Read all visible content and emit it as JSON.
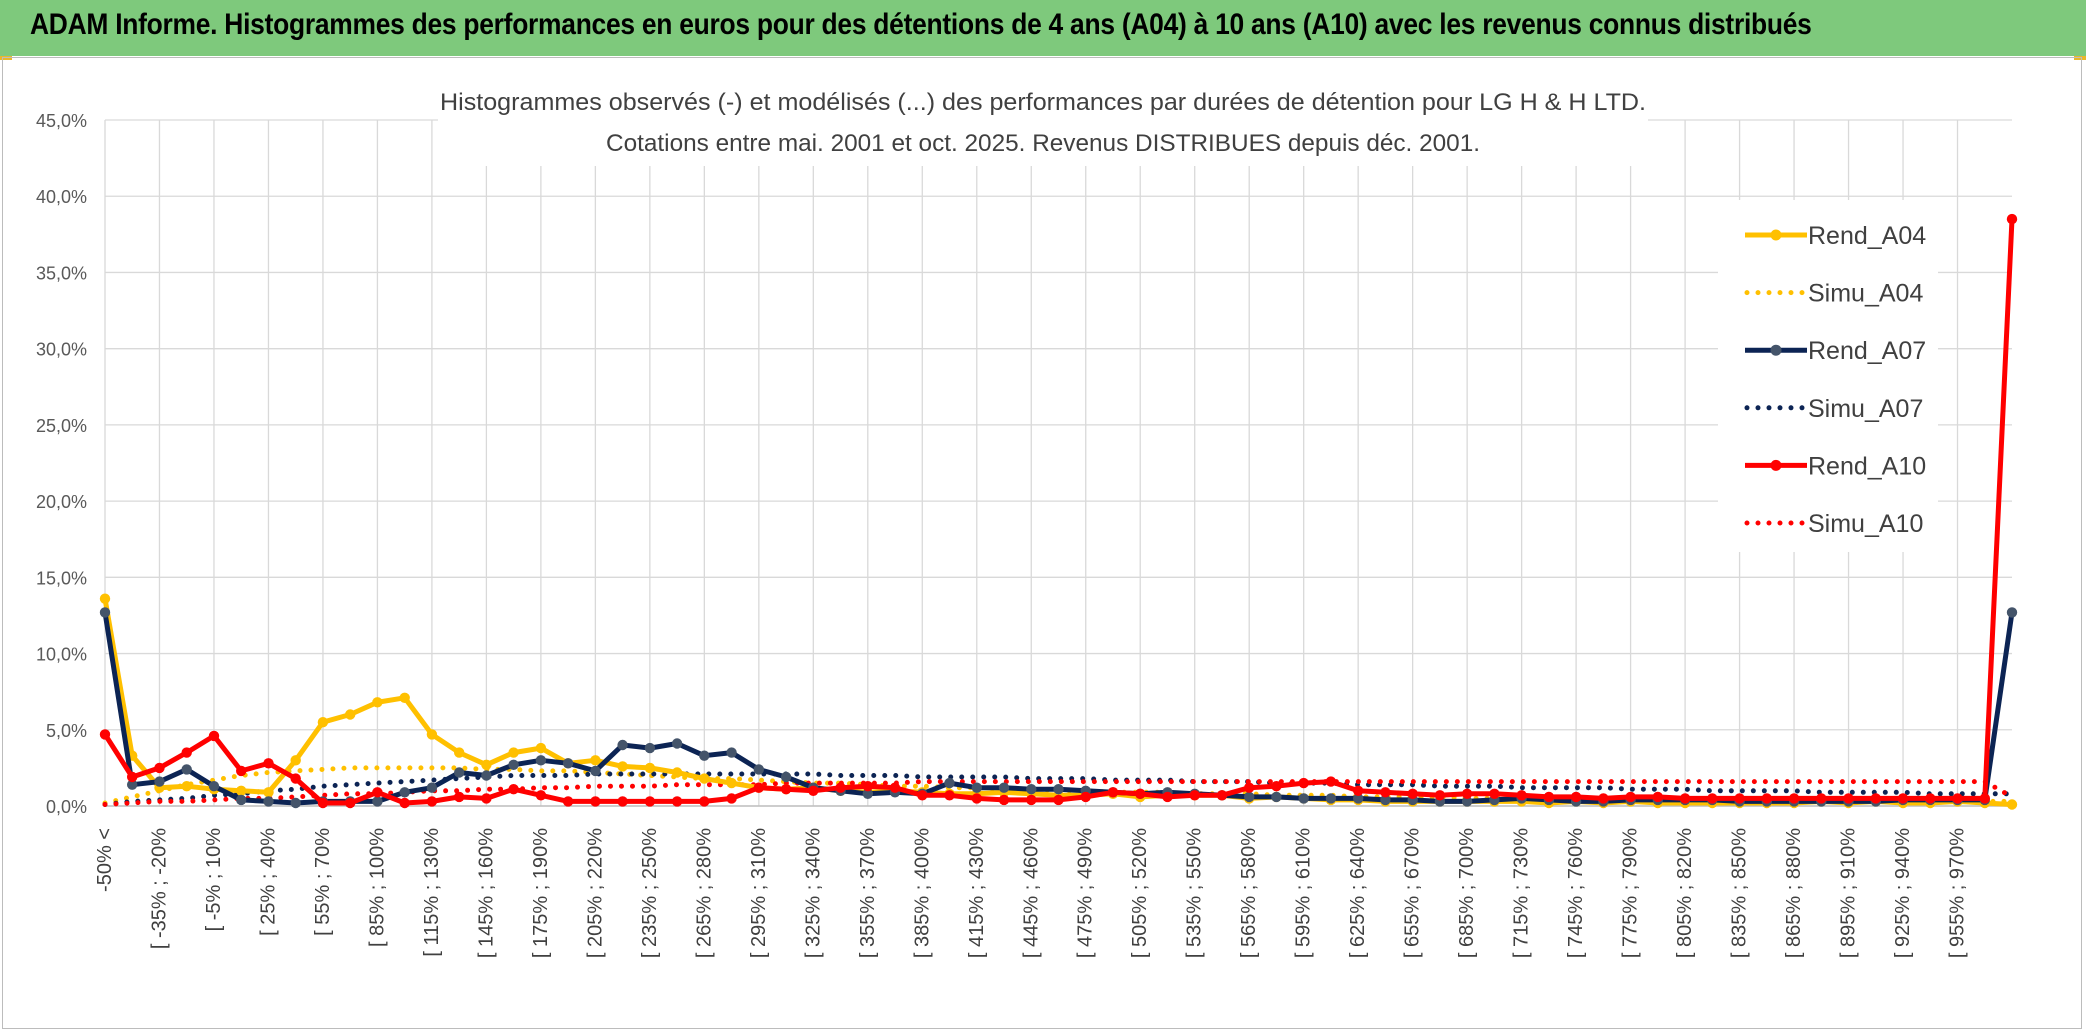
{
  "header": {
    "title": "ADAM Informe. Histogrammes des performances en euros pour des détentions de 4 ans (A04) à 10 ans (A10) avec les revenus connus distribués"
  },
  "chart_data": {
    "type": "line",
    "title": "Histogrammes observés (-) et modélisés (...) des performances par durées de détention pour LG H & H LTD.",
    "subtitle": "Cotations entre mai. 2001 et oct. 2025. Revenus DISTRIBUES depuis déc. 2001.",
    "ylim": [
      0,
      45
    ],
    "yticks": [
      "0,0%",
      "5,0%",
      "10,0%",
      "15,0%",
      "20,0%",
      "25,0%",
      "30,0%",
      "35,0%",
      "40,0%",
      "45,0%"
    ],
    "ytick_values": [
      0,
      5,
      10,
      15,
      20,
      25,
      30,
      35,
      40,
      45
    ],
    "x_tick_labels": [
      "-50% <",
      "[ -35% ; -20%",
      "[ -5% ; 10%",
      "[ 25% ; 40%",
      "[ 55% ; 70%",
      "[ 85% ; 100%",
      "[ 115% ; 130%",
      "[ 145% ; 160%",
      "[ 175% ; 190%",
      "[ 205% ; 220%",
      "[ 235% ; 250%",
      "[ 265% ; 280%",
      "[ 295% ; 310%",
      "[ 325% ; 340%",
      "[ 355% ; 370%",
      "[ 385% ; 400%",
      "[ 415% ; 430%",
      "[ 445% ; 460%",
      "[ 475% ; 490%",
      "[ 505% ; 520%",
      "[ 535% ; 550%",
      "[ 565% ; 580%",
      "[ 595% ; 610%",
      "[ 625% ; 640%",
      "[ 655% ; 670%",
      "[ 685% ; 700%",
      "[ 715% ; 730%",
      "[ 745% ; 760%",
      "[ 775% ; 790%",
      "[ 805% ; 820%",
      "[ 835% ; 850%",
      "[ 865% ; 880%",
      "[ 895% ; 910%",
      "[ 925% ; 940%",
      "[ 955% ; 970%"
    ],
    "grid": true,
    "legend_position": "right",
    "series": [
      {
        "name": "Rend_A04",
        "style": "solid",
        "color": "#ffc000",
        "values": [
          13.6,
          3.3,
          1.2,
          1.3,
          1.1,
          1.0,
          0.9,
          3.0,
          5.5,
          6.0,
          6.8,
          7.1,
          4.7,
          3.5,
          2.7,
          3.5,
          3.8,
          2.8,
          3.0,
          2.6,
          2.5,
          2.2,
          1.8,
          1.5,
          1.2,
          1.1,
          1.2,
          1.0,
          0.9,
          1.0,
          0.9,
          0.8,
          0.8,
          0.9,
          0.8,
          0.7,
          0.7,
          0.8,
          0.6,
          0.7,
          0.7,
          0.7,
          0.5,
          0.6,
          0.5,
          0.4,
          0.4,
          0.3,
          0.3,
          0.3,
          0.3,
          0.3,
          0.3,
          0.2,
          0.3,
          0.2,
          0.3,
          0.2,
          0.2,
          0.2,
          0.2,
          0.2,
          0.2,
          0.3,
          0.2,
          0.3,
          0.2,
          0.2,
          0.3,
          0.2,
          0.1
        ]
      },
      {
        "name": "Simu_A04",
        "style": "dotted",
        "color": "#ffc000",
        "values": [
          0.2,
          0.6,
          1.0,
          1.4,
          1.7,
          2.0,
          2.2,
          2.3,
          2.4,
          2.5,
          2.5,
          2.5,
          2.5,
          2.5,
          2.4,
          2.4,
          2.3,
          2.3,
          2.2,
          2.1,
          2.0,
          1.9,
          1.8,
          1.8,
          1.7,
          1.6,
          1.5,
          1.5,
          1.4,
          1.3,
          1.3,
          1.2,
          1.2,
          1.1,
          1.1,
          1.0,
          1.0,
          0.9,
          0.9,
          0.9,
          0.8,
          0.8,
          0.8,
          0.7,
          0.7,
          0.7,
          0.6,
          0.6,
          0.6,
          0.6,
          0.5,
          0.5,
          0.5,
          0.5,
          0.5,
          0.4,
          0.4,
          0.4,
          0.4,
          0.4,
          0.4,
          0.4,
          0.3,
          0.3,
          0.3,
          0.3,
          0.3,
          0.3,
          0.3,
          0.3,
          0.3
        ]
      },
      {
        "name": "Rend_A07",
        "style": "solid",
        "color": "#0c2454",
        "values": [
          12.7,
          1.4,
          1.6,
          2.4,
          1.3,
          0.4,
          0.3,
          0.2,
          0.3,
          0.3,
          0.3,
          0.9,
          1.2,
          2.2,
          2.0,
          2.7,
          3.0,
          2.8,
          2.3,
          4.0,
          3.8,
          4.1,
          3.3,
          3.5,
          2.4,
          1.9,
          1.2,
          1.0,
          0.8,
          0.9,
          0.8,
          1.5,
          1.2,
          1.2,
          1.1,
          1.1,
          1.0,
          0.9,
          0.8,
          0.9,
          0.8,
          0.7,
          0.6,
          0.6,
          0.5,
          0.5,
          0.5,
          0.4,
          0.4,
          0.3,
          0.3,
          0.4,
          0.5,
          0.4,
          0.3,
          0.3,
          0.4,
          0.4,
          0.4,
          0.4,
          0.3,
          0.3,
          0.3,
          0.3,
          0.3,
          0.3,
          0.4,
          0.4,
          0.4,
          0.4,
          12.7
        ]
      },
      {
        "name": "Simu_A07",
        "style": "dotted",
        "color": "#0c2454",
        "values": [
          0.1,
          0.3,
          0.4,
          0.5,
          0.7,
          0.8,
          1.0,
          1.1,
          1.3,
          1.4,
          1.5,
          1.6,
          1.7,
          1.8,
          1.9,
          2.0,
          2.0,
          2.0,
          2.1,
          2.1,
          2.1,
          2.1,
          2.1,
          2.1,
          2.1,
          2.1,
          2.1,
          2.0,
          2.0,
          2.0,
          1.9,
          1.9,
          1.9,
          1.9,
          1.8,
          1.8,
          1.8,
          1.7,
          1.7,
          1.7,
          1.6,
          1.6,
          1.6,
          1.5,
          1.5,
          1.5,
          1.4,
          1.4,
          1.4,
          1.3,
          1.3,
          1.3,
          1.2,
          1.2,
          1.2,
          1.2,
          1.1,
          1.1,
          1.1,
          1.0,
          1.0,
          1.0,
          1.0,
          0.9,
          0.9,
          0.9,
          0.9,
          0.8,
          0.8,
          0.8,
          0.8
        ]
      },
      {
        "name": "Rend_A10",
        "style": "solid",
        "color": "#ff0000",
        "values": [
          4.7,
          1.9,
          2.5,
          3.5,
          4.6,
          2.3,
          2.8,
          1.8,
          0.2,
          0.2,
          0.9,
          0.2,
          0.3,
          0.6,
          0.5,
          1.1,
          0.7,
          0.3,
          0.3,
          0.3,
          0.3,
          0.3,
          0.3,
          0.5,
          1.2,
          1.1,
          1.0,
          1.2,
          1.3,
          1.2,
          0.7,
          0.7,
          0.5,
          0.4,
          0.4,
          0.4,
          0.6,
          0.9,
          0.8,
          0.6,
          0.7,
          0.7,
          1.2,
          1.3,
          1.5,
          1.6,
          1.0,
          0.9,
          0.8,
          0.7,
          0.8,
          0.8,
          0.7,
          0.6,
          0.6,
          0.5,
          0.6,
          0.6,
          0.5,
          0.5,
          0.5,
          0.5,
          0.5,
          0.5,
          0.5,
          0.5,
          0.5,
          0.5,
          0.5,
          0.5,
          38.5
        ]
      },
      {
        "name": "Simu_A10",
        "style": "dotted",
        "color": "#ff0000",
        "values": [
          0.1,
          0.2,
          0.3,
          0.3,
          0.4,
          0.5,
          0.5,
          0.6,
          0.7,
          0.8,
          0.8,
          0.9,
          1.0,
          1.0,
          1.1,
          1.1,
          1.2,
          1.2,
          1.3,
          1.3,
          1.3,
          1.4,
          1.4,
          1.4,
          1.4,
          1.5,
          1.5,
          1.5,
          1.5,
          1.5,
          1.6,
          1.6,
          1.6,
          1.6,
          1.6,
          1.6,
          1.6,
          1.6,
          1.6,
          1.6,
          1.6,
          1.6,
          1.6,
          1.6,
          1.6,
          1.6,
          1.6,
          1.6,
          1.6,
          1.6,
          1.6,
          1.6,
          1.6,
          1.6,
          1.6,
          1.6,
          1.6,
          1.6,
          1.6,
          1.6,
          1.6,
          1.6,
          1.6,
          1.6,
          1.6,
          1.6,
          1.6,
          1.6,
          1.6,
          1.6,
          0.6
        ]
      }
    ]
  }
}
